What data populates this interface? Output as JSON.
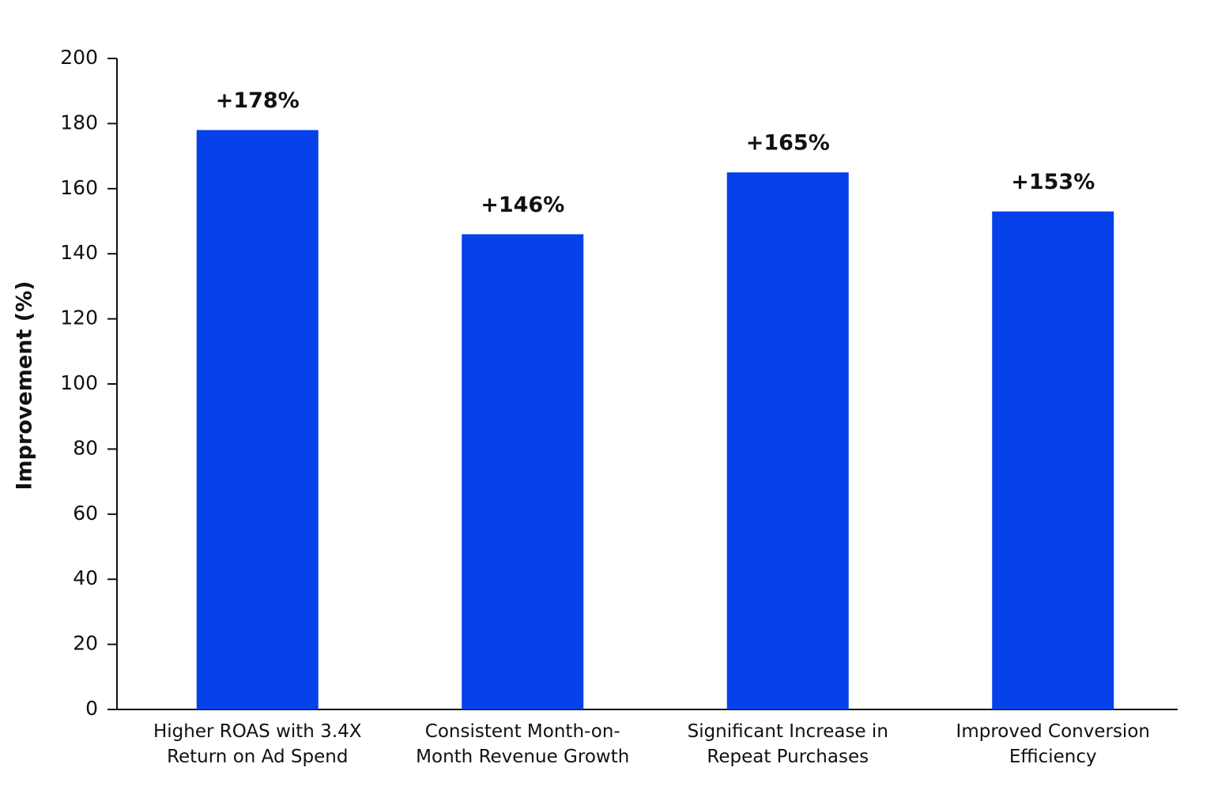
{
  "chart_data": {
    "type": "bar",
    "y_label": "Improvement (%)",
    "categories": [
      "Higher ROAS with 3.4X Return on Ad Spend",
      "Consistent Month-on-Month Revenue Growth",
      "Significant Increase in Repeat Purchases",
      "Improved Conversion Efficiency"
    ],
    "values": [
      178,
      146,
      165,
      153
    ],
    "value_labels": [
      "+178%",
      "+146%",
      "+165%",
      "+153%"
    ],
    "color": "#0540e8",
    "ylim": [
      0,
      200
    ],
    "yticks": [
      0,
      20,
      40,
      60,
      80,
      100,
      120,
      140,
      160,
      180,
      200
    ],
    "grid": false
  }
}
